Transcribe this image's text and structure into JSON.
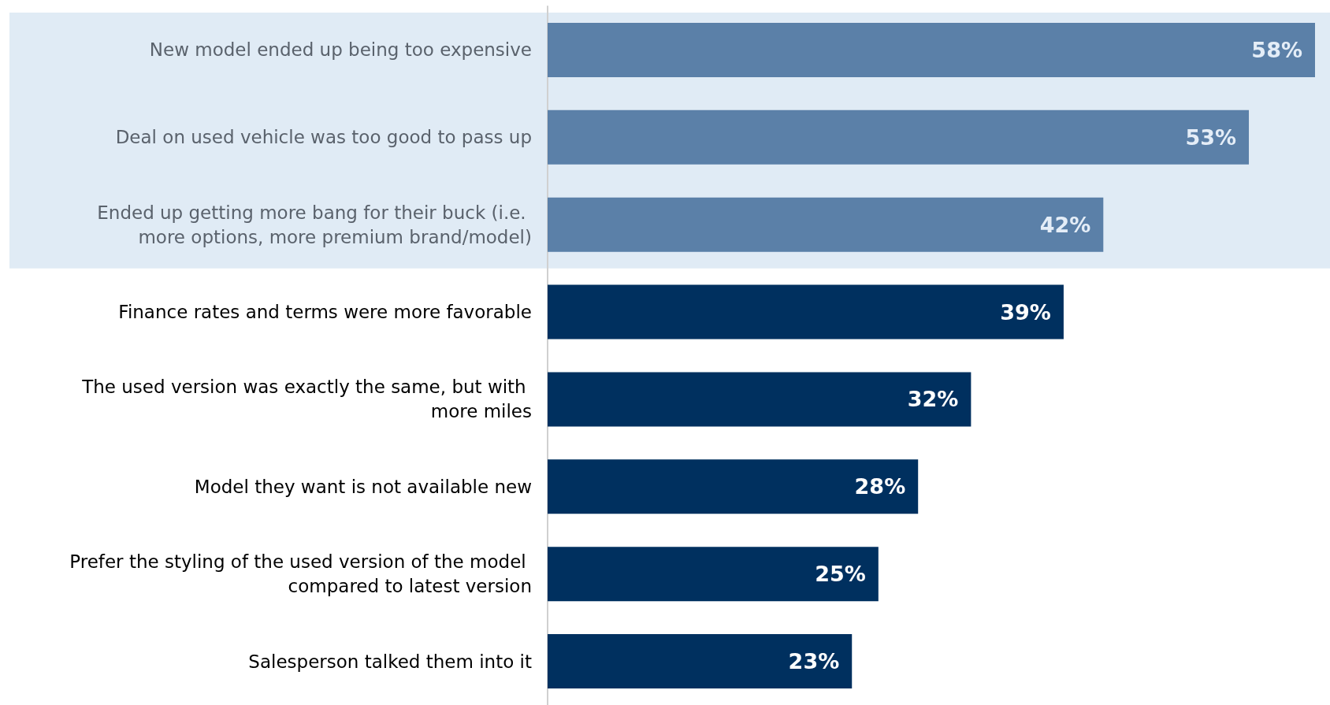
{
  "chart_data": {
    "type": "bar",
    "orientation": "horizontal",
    "categories": [
      "New model ended up being too expensive",
      "Deal on used vehicle was too good to pass up",
      "Ended up getting more bang for their buck (i.e. more options, more premium brand/model)",
      "Finance rates and terms were more favorable",
      "The used version was exactly the same, but with more miles",
      "Model they want is not available new",
      "Prefer the styling of the used version of the model compared to latest version",
      "Salesperson talked them into it"
    ],
    "values": [
      58,
      53,
      42,
      39,
      32,
      28,
      25,
      23
    ],
    "colors": [
      "#5b80a8",
      "#5b80a8",
      "#5b80a8",
      "#00305f",
      "#00305f",
      "#00305f",
      "#00305f",
      "#00305f"
    ],
    "value_labels": [
      "58%",
      "53%",
      "42%",
      "39%",
      "32%",
      "28%",
      "25%",
      "23%"
    ],
    "bands": [
      {
        "axis": "y",
        "from": "New model ended up being too expensive",
        "to": "Ended up getting more bang for their buck (i.e. more options, more premium brand/model)",
        "color": "#e0ebf5"
      }
    ],
    "grid": false
  }
}
